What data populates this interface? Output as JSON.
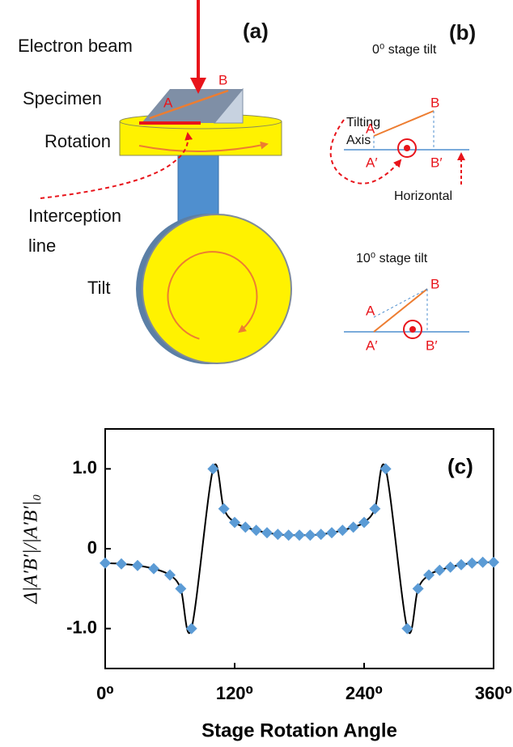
{
  "panel_a": {
    "label": "(a)",
    "beam": "Electron beam",
    "specimen": "Specimen",
    "rotation": "Rotation",
    "interception": [
      "Interception",
      "line"
    ],
    "tilt": "Tilt",
    "point_a": "A",
    "point_b": "B"
  },
  "panel_b": {
    "label": "(b)",
    "top": {
      "title": "0⁰ stage tilt",
      "axis_label": [
        "Tilting",
        "Axis"
      ],
      "a": "A",
      "b": "B",
      "a_proj": "A′",
      "b_proj": "B′",
      "horizontal": "Horizontal"
    },
    "bottom": {
      "title": "10⁰ stage tilt",
      "a": "A",
      "b": "B",
      "a_proj": "A′",
      "b_proj": "B′"
    }
  },
  "chart_data": {
    "type": "line",
    "annotation": "(c)",
    "x_label": "Stage Rotation Angle",
    "y_label": "Δ|A′B′|/|A′B′|₀",
    "x": [
      0,
      15,
      30,
      45,
      60,
      70,
      80,
      100,
      110,
      120,
      130,
      140,
      150,
      160,
      170,
      180,
      190,
      200,
      210,
      220,
      230,
      240,
      250,
      260,
      280,
      290,
      300,
      310,
      320,
      330,
      340,
      350,
      360
    ],
    "values": [
      -0.18,
      -0.19,
      -0.21,
      -0.25,
      -0.33,
      -0.5,
      -1.0,
      1.0,
      0.5,
      0.33,
      0.27,
      0.23,
      0.2,
      0.18,
      0.17,
      0.17,
      0.17,
      0.18,
      0.2,
      0.23,
      0.27,
      0.33,
      0.5,
      1.0,
      -1.0,
      -0.5,
      -0.33,
      -0.27,
      -0.23,
      -0.2,
      -0.18,
      -0.17,
      -0.17
    ],
    "color": "#5b9bd5",
    "line_color": "#000000",
    "xlim": [
      0,
      360
    ],
    "xticks": [
      {
        "value": 0,
        "label": "0⁰"
      },
      {
        "value": 120,
        "label": "120⁰"
      },
      {
        "value": 240,
        "label": "240⁰"
      },
      {
        "value": 360,
        "label": "360⁰"
      }
    ],
    "ylim": [
      -1.5,
      1.5
    ],
    "yticks": [
      {
        "value": -1,
        "label": "-1.0"
      },
      0,
      {
        "value": 1,
        "label": "1.0"
      }
    ]
  }
}
